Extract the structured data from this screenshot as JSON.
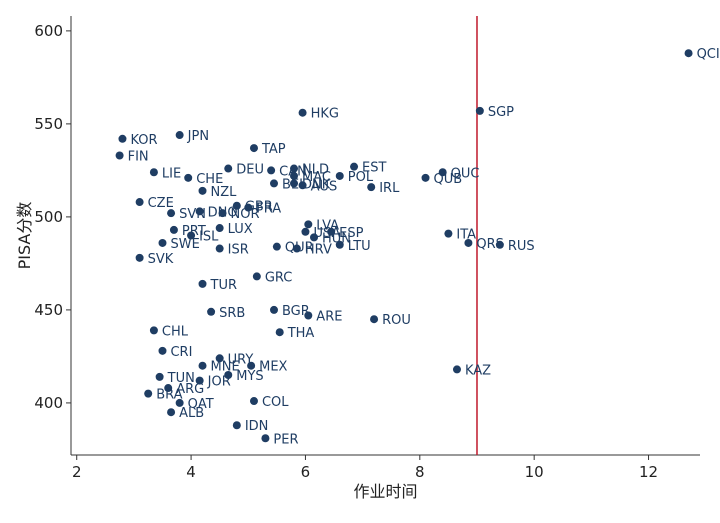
{
  "chart_data": {
    "type": "scatter",
    "title": "",
    "xlabel": "作业时间",
    "ylabel": "PISA分数",
    "xlim": [
      1.9,
      12.9
    ],
    "ylim": [
      372,
      608
    ],
    "xticks": [
      2,
      4,
      6,
      8,
      10,
      12
    ],
    "yticks": [
      400,
      450,
      500,
      550,
      600
    ],
    "refline_x": 9.0,
    "point_color": "#1f3d63",
    "refline_color": "#c0192b",
    "points": [
      {
        "label": "QCI",
        "x": 12.7,
        "y": 588
      },
      {
        "label": "SGP",
        "x": 9.05,
        "y": 557
      },
      {
        "label": "HKG",
        "x": 5.95,
        "y": 556
      },
      {
        "label": "JPN",
        "x": 3.8,
        "y": 544
      },
      {
        "label": "KOR",
        "x": 2.8,
        "y": 542
      },
      {
        "label": "TAP",
        "x": 5.1,
        "y": 537
      },
      {
        "label": "FIN",
        "x": 2.75,
        "y": 533
      },
      {
        "label": "EST",
        "x": 6.85,
        "y": 527
      },
      {
        "label": "DEU",
        "x": 4.65,
        "y": 526
      },
      {
        "label": "CAN",
        "x": 5.4,
        "y": 525
      },
      {
        "label": "NLD",
        "x": 5.8,
        "y": 526
      },
      {
        "label": "QUC",
        "x": 8.4,
        "y": 524
      },
      {
        "label": "LIE",
        "x": 3.35,
        "y": 524
      },
      {
        "label": "MAC",
        "x": 5.8,
        "y": 522
      },
      {
        "label": "POL",
        "x": 6.6,
        "y": 522
      },
      {
        "label": "QUB",
        "x": 8.1,
        "y": 521
      },
      {
        "label": "CHE",
        "x": 3.95,
        "y": 521
      },
      {
        "label": "BEL",
        "x": 5.45,
        "y": 518
      },
      {
        "label": "DNK",
        "x": 5.8,
        "y": 518
      },
      {
        "label": "AUS",
        "x": 5.95,
        "y": 517
      },
      {
        "label": "IRL",
        "x": 7.15,
        "y": 516
      },
      {
        "label": "NZL",
        "x": 4.2,
        "y": 514
      },
      {
        "label": "CZE",
        "x": 3.1,
        "y": 508
      },
      {
        "label": "GBR",
        "x": 4.8,
        "y": 506
      },
      {
        "label": "FRA",
        "x": 5.0,
        "y": 505
      },
      {
        "label": "SVN",
        "x": 3.65,
        "y": 502
      },
      {
        "label": "DNO",
        "x": 4.15,
        "y": 503
      },
      {
        "label": "NOR",
        "x": 4.55,
        "y": 502
      },
      {
        "label": "LVA",
        "x": 6.05,
        "y": 496
      },
      {
        "label": "LUX",
        "x": 4.5,
        "y": 494
      },
      {
        "label": "USA",
        "x": 6.0,
        "y": 492
      },
      {
        "label": "ESP",
        "x": 6.45,
        "y": 492
      },
      {
        "label": "PRT",
        "x": 3.7,
        "y": 493
      },
      {
        "label": "ITA",
        "x": 8.5,
        "y": 491
      },
      {
        "label": "ISL",
        "x": 4.0,
        "y": 490
      },
      {
        "label": "HUN",
        "x": 6.15,
        "y": 489
      },
      {
        "label": "SWE",
        "x": 3.5,
        "y": 486
      },
      {
        "label": "QRS",
        "x": 8.85,
        "y": 486
      },
      {
        "label": "LTU",
        "x": 6.6,
        "y": 485
      },
      {
        "label": "RUS",
        "x": 9.4,
        "y": 485
      },
      {
        "label": "ISR",
        "x": 4.5,
        "y": 483
      },
      {
        "label": "QUR",
        "x": 5.5,
        "y": 484
      },
      {
        "label": "HRV",
        "x": 5.85,
        "y": 483
      },
      {
        "label": "SVK",
        "x": 3.1,
        "y": 478
      },
      {
        "label": "GRC",
        "x": 5.15,
        "y": 468
      },
      {
        "label": "TUR",
        "x": 4.2,
        "y": 464
      },
      {
        "label": "BGR",
        "x": 5.45,
        "y": 450
      },
      {
        "label": "SRB",
        "x": 4.35,
        "y": 449
      },
      {
        "label": "ARE",
        "x": 6.05,
        "y": 447
      },
      {
        "label": "ROU",
        "x": 7.2,
        "y": 445
      },
      {
        "label": "CHL",
        "x": 3.35,
        "y": 439
      },
      {
        "label": "THA",
        "x": 5.55,
        "y": 438
      },
      {
        "label": "CRI",
        "x": 3.5,
        "y": 428
      },
      {
        "label": "URY",
        "x": 4.5,
        "y": 424
      },
      {
        "label": "MNE",
        "x": 4.2,
        "y": 420
      },
      {
        "label": "MEX",
        "x": 5.05,
        "y": 420
      },
      {
        "label": "KAZ",
        "x": 8.65,
        "y": 418
      },
      {
        "label": "TUN",
        "x": 3.45,
        "y": 414
      },
      {
        "label": "MYS",
        "x": 4.65,
        "y": 415
      },
      {
        "label": "JOR",
        "x": 4.15,
        "y": 412
      },
      {
        "label": "ARG",
        "x": 3.6,
        "y": 408
      },
      {
        "label": "BRA",
        "x": 3.25,
        "y": 405
      },
      {
        "label": "QAT",
        "x": 3.8,
        "y": 400
      },
      {
        "label": "COL",
        "x": 5.1,
        "y": 401
      },
      {
        "label": "ALB",
        "x": 3.65,
        "y": 395
      },
      {
        "label": "IDN",
        "x": 4.8,
        "y": 388
      },
      {
        "label": "PER",
        "x": 5.3,
        "y": 381
      }
    ]
  }
}
